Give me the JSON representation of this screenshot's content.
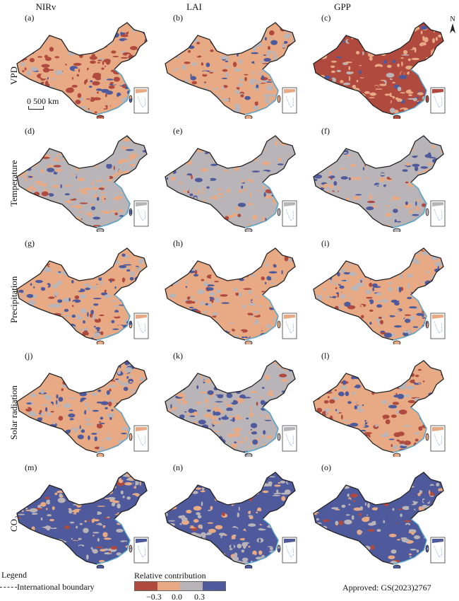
{
  "columns": [
    "NIRv",
    "LAI",
    "GPP"
  ],
  "rows": [
    "VPD",
    "Temperature",
    "Precipitation",
    "Solar radiation",
    "CO₂"
  ],
  "panels": [
    "(a)",
    "(b)",
    "(c)",
    "(d)",
    "(e)",
    "(f)",
    "(g)",
    "(h)",
    "(i)",
    "(j)",
    "(k)",
    "(l)",
    "(m)",
    "(n)",
    "(o)"
  ],
  "scale_bar": "0 500 km",
  "north_arrow": "N",
  "legend": {
    "title": "Legend",
    "boundary_label": "International boundary",
    "colorbar_title": "Relative contribution",
    "ticks": [
      "−0.3",
      "0.0",
      "0.3"
    ],
    "colors": [
      "#b04a3f",
      "#e8aa84",
      "#b9b4b7",
      "#4e5a9c"
    ]
  },
  "approval": "Approved: GS(2023)2767"
}
